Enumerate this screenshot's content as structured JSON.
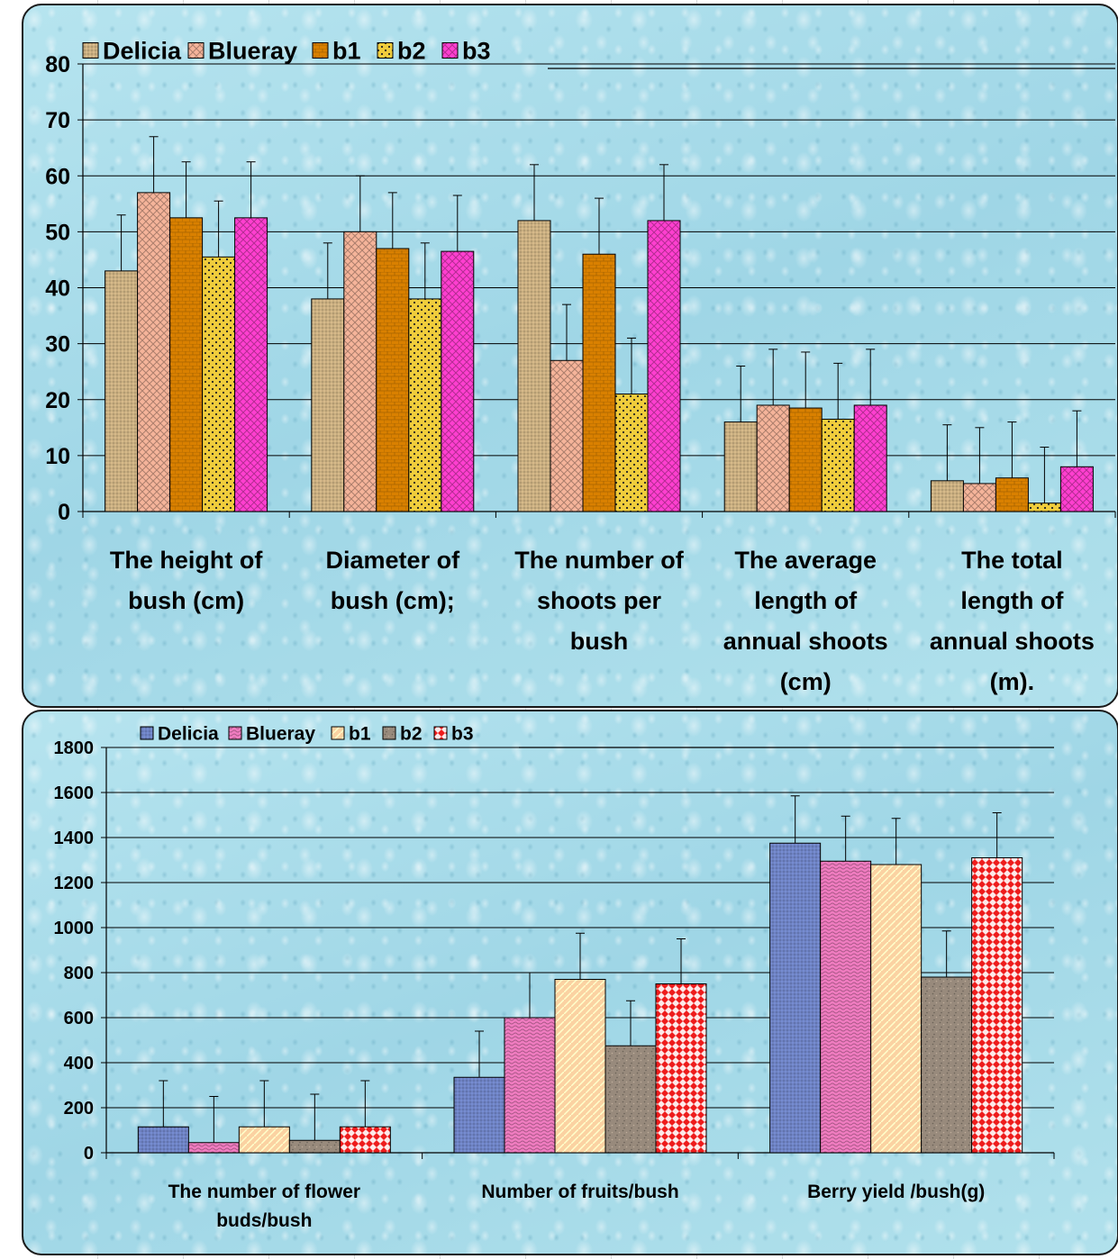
{
  "chart_data": [
    {
      "type": "bar",
      "categories": [
        [
          "The height of",
          "bush (cm)"
        ],
        [
          "Diameter of",
          "bush (cm);"
        ],
        [
          "The number of",
          "shoots per",
          "bush"
        ],
        [
          "The average",
          "length of",
          "annual shoots",
          "(cm)"
        ],
        [
          "The total",
          "length of",
          "annual shoots",
          "(m)."
        ]
      ],
      "series": [
        {
          "name": "Delicia",
          "values": [
            43,
            38,
            52,
            16,
            5.5
          ],
          "error": [
            10,
            10,
            10,
            10,
            10
          ],
          "color": "#c8ad80"
        },
        {
          "name": "Blueray",
          "values": [
            57,
            50,
            27,
            19,
            5
          ],
          "error": [
            10,
            10,
            10,
            10,
            10
          ],
          "color": "#f5b49a"
        },
        {
          "name": "b1",
          "values": [
            52.5,
            47,
            46,
            18.5,
            6
          ],
          "error": [
            10,
            10,
            10,
            10,
            10
          ],
          "color": "#d98000"
        },
        {
          "name": "b2",
          "values": [
            45.5,
            38,
            21,
            16.5,
            1.5
          ],
          "error": [
            10,
            10,
            10,
            10,
            10
          ],
          "color": "#f0cd3c"
        },
        {
          "name": "b3",
          "values": [
            52.5,
            46.5,
            52,
            19,
            8
          ],
          "error": [
            10,
            10,
            10,
            10,
            10
          ],
          "color": "#ff3fd0"
        }
      ],
      "yticks": [
        0,
        10,
        20,
        30,
        40,
        50,
        60,
        70,
        80
      ],
      "ylim": [
        0,
        80
      ],
      "grid": true,
      "legend": "top-left"
    },
    {
      "type": "bar",
      "categories": [
        [
          "The number of flower",
          "buds/bush"
        ],
        [
          "Number of fruits/bush"
        ],
        [
          "Berry yield /bush(g)"
        ]
      ],
      "series": [
        {
          "name": "Delicia",
          "values": [
            115,
            335,
            1375
          ],
          "error": [
            205,
            205,
            210
          ],
          "color": "#6e82c2"
        },
        {
          "name": "Blueray",
          "values": [
            45,
            600,
            1295
          ],
          "error": [
            205,
            200,
            200
          ],
          "color": "#f07cc0"
        },
        {
          "name": "b1",
          "values": [
            115,
            770,
            1280
          ],
          "error": [
            205,
            205,
            205
          ],
          "color": "#fbd2a2"
        },
        {
          "name": "b2",
          "values": [
            55,
            475,
            780
          ],
          "error": [
            205,
            200,
            205
          ],
          "color": "#988a7c"
        },
        {
          "name": "b3",
          "values": [
            115,
            750,
            1310
          ],
          "error": [
            205,
            200,
            200
          ],
          "color": "#ee1c1c"
        }
      ],
      "yticks": [
        0,
        200,
        400,
        600,
        800,
        1000,
        1200,
        1400,
        1600,
        1800
      ],
      "ylim": [
        0,
        1800
      ],
      "grid": true,
      "legend": "top-left"
    }
  ]
}
